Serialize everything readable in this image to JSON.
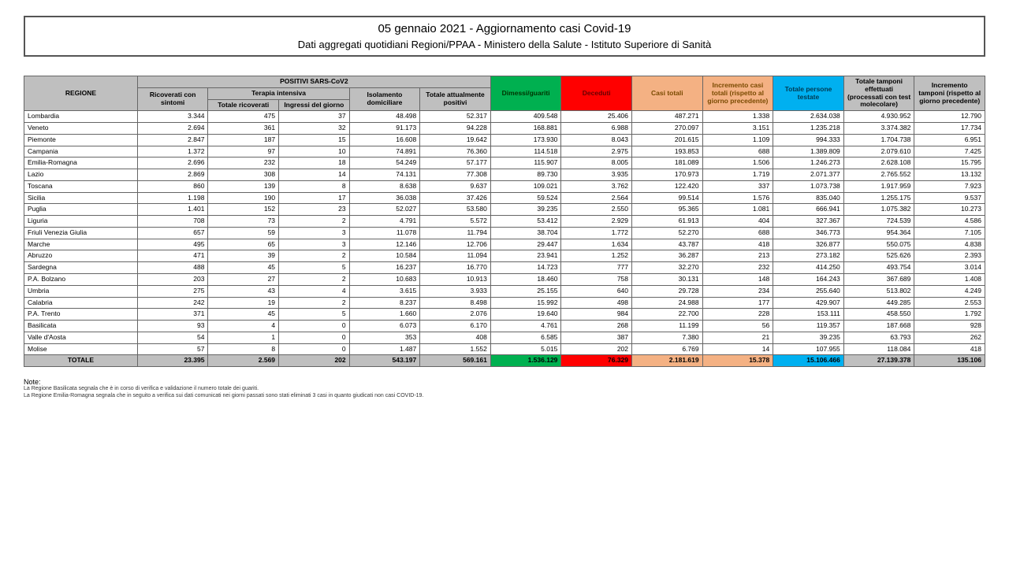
{
  "title": {
    "line1": "05 gennaio 2021 - Aggiornamento casi Covid-19",
    "line2": "Dati aggregati quotidiani Regioni/PPAA - Ministero della Salute - Istituto Superiore di Sanità"
  },
  "headers": {
    "regione": "REGIONE",
    "positivi": "POSITIVI SARS-CoV2",
    "ricoverati": "Ricoverati con sintomi",
    "terapia": "Terapia intensiva",
    "terapia_tot": "Totale ricoverati",
    "terapia_ing": "Ingressi del giorno",
    "isolamento": "Isolamento domiciliare",
    "tot_pos": "Totale attualmente positivi",
    "guariti": "Dimessi/guariti",
    "deceduti": "Deceduti",
    "casi_tot": "Casi totali",
    "incr_casi": "Incremento casi totali (rispetto al giorno precedente)",
    "persone": "Totale persone testate",
    "tamponi": "Totale tamponi effettuati (processati con test molecolare)",
    "incr_tamp": "Incremento tamponi (rispetto al giorno precedente)"
  },
  "rows": [
    {
      "r": "Lombardia",
      "v": [
        "3.344",
        "475",
        "37",
        "48.498",
        "52.317",
        "409.548",
        "25.406",
        "487.271",
        "1.338",
        "2.634.038",
        "4.930.952",
        "12.790"
      ]
    },
    {
      "r": "Veneto",
      "v": [
        "2.694",
        "361",
        "32",
        "91.173",
        "94.228",
        "168.881",
        "6.988",
        "270.097",
        "3.151",
        "1.235.218",
        "3.374.382",
        "17.734"
      ]
    },
    {
      "r": "Piemonte",
      "v": [
        "2.847",
        "187",
        "15",
        "16.608",
        "19.642",
        "173.930",
        "8.043",
        "201.615",
        "1.109",
        "994.333",
        "1.704.738",
        "6.951"
      ]
    },
    {
      "r": "Campania",
      "v": [
        "1.372",
        "97",
        "10",
        "74.891",
        "76.360",
        "114.518",
        "2.975",
        "193.853",
        "688",
        "1.389.809",
        "2.079.610",
        "7.425"
      ]
    },
    {
      "r": "Emilia-Romagna",
      "v": [
        "2.696",
        "232",
        "18",
        "54.249",
        "57.177",
        "115.907",
        "8.005",
        "181.089",
        "1.506",
        "1.246.273",
        "2.628.108",
        "15.795"
      ]
    },
    {
      "r": "Lazio",
      "v": [
        "2.869",
        "308",
        "14",
        "74.131",
        "77.308",
        "89.730",
        "3.935",
        "170.973",
        "1.719",
        "2.071.377",
        "2.765.552",
        "13.132"
      ]
    },
    {
      "r": "Toscana",
      "v": [
        "860",
        "139",
        "8",
        "8.638",
        "9.637",
        "109.021",
        "3.762",
        "122.420",
        "337",
        "1.073.738",
        "1.917.959",
        "7.923"
      ]
    },
    {
      "r": "Sicilia",
      "v": [
        "1.198",
        "190",
        "17",
        "36.038",
        "37.426",
        "59.524",
        "2.564",
        "99.514",
        "1.576",
        "835.040",
        "1.255.175",
        "9.537"
      ]
    },
    {
      "r": "Puglia",
      "v": [
        "1.401",
        "152",
        "23",
        "52.027",
        "53.580",
        "39.235",
        "2.550",
        "95.365",
        "1.081",
        "666.941",
        "1.075.382",
        "10.273"
      ]
    },
    {
      "r": "Liguria",
      "v": [
        "708",
        "73",
        "2",
        "4.791",
        "5.572",
        "53.412",
        "2.929",
        "61.913",
        "404",
        "327.367",
        "724.539",
        "4.586"
      ]
    },
    {
      "r": "Friuli Venezia Giulia",
      "v": [
        "657",
        "59",
        "3",
        "11.078",
        "11.794",
        "38.704",
        "1.772",
        "52.270",
        "688",
        "346.773",
        "954.364",
        "7.105"
      ]
    },
    {
      "r": "Marche",
      "v": [
        "495",
        "65",
        "3",
        "12.146",
        "12.706",
        "29.447",
        "1.634",
        "43.787",
        "418",
        "326.877",
        "550.075",
        "4.838"
      ]
    },
    {
      "r": "Abruzzo",
      "v": [
        "471",
        "39",
        "2",
        "10.584",
        "11.094",
        "23.941",
        "1.252",
        "36.287",
        "213",
        "273.182",
        "525.626",
        "2.393"
      ]
    },
    {
      "r": "Sardegna",
      "v": [
        "488",
        "45",
        "5",
        "16.237",
        "16.770",
        "14.723",
        "777",
        "32.270",
        "232",
        "414.250",
        "493.754",
        "3.014"
      ]
    },
    {
      "r": "P.A. Bolzano",
      "v": [
        "203",
        "27",
        "2",
        "10.683",
        "10.913",
        "18.460",
        "758",
        "30.131",
        "148",
        "164.243",
        "367.689",
        "1.408"
      ]
    },
    {
      "r": "Umbria",
      "v": [
        "275",
        "43",
        "4",
        "3.615",
        "3.933",
        "25.155",
        "640",
        "29.728",
        "234",
        "255.640",
        "513.802",
        "4.249"
      ]
    },
    {
      "r": "Calabria",
      "v": [
        "242",
        "19",
        "2",
        "8.237",
        "8.498",
        "15.992",
        "498",
        "24.988",
        "177",
        "429.907",
        "449.285",
        "2.553"
      ]
    },
    {
      "r": "P.A. Trento",
      "v": [
        "371",
        "45",
        "5",
        "1.660",
        "2.076",
        "19.640",
        "984",
        "22.700",
        "228",
        "153.111",
        "458.550",
        "1.792"
      ]
    },
    {
      "r": "Basilicata",
      "v": [
        "93",
        "4",
        "0",
        "6.073",
        "6.170",
        "4.761",
        "268",
        "11.199",
        "56",
        "119.357",
        "187.668",
        "928"
      ]
    },
    {
      "r": "Valle d'Aosta",
      "v": [
        "54",
        "1",
        "0",
        "353",
        "408",
        "6.585",
        "387",
        "7.380",
        "21",
        "39.235",
        "63.793",
        "262"
      ]
    },
    {
      "r": "Molise",
      "v": [
        "57",
        "8",
        "0",
        "1.487",
        "1.552",
        "5.015",
        "202",
        "6.769",
        "14",
        "107.955",
        "118.084",
        "418"
      ]
    }
  ],
  "total": {
    "r": "TOTALE",
    "v": [
      "23.395",
      "2.569",
      "202",
      "543.197",
      "569.161",
      "1.536.129",
      "76.329",
      "2.181.619",
      "15.378",
      "15.106.466",
      "27.139.378",
      "135.106"
    ]
  },
  "notes": {
    "label": "Note:",
    "n1": "La Regione Basilicata segnala che è in corso di verifica e validazione il numero totale dei guariti.",
    "n2": "La Regione Emilia-Romagna segnala che in seguito a verifica sui dati comunicati nei giorni passati sono stati eliminati 3 casi in quanto giudicati non casi COVID-19."
  },
  "styling": {
    "colors": {
      "grey": "#bfbfbf",
      "green": "#00b050",
      "red": "#ff0000",
      "orange": "#f4b183",
      "blue": "#00b0f0",
      "border": "#666666",
      "background": "#ffffff"
    },
    "font_family": "Arial",
    "header_font_size_pt": 8.5,
    "title_font_size_pt": 15,
    "subtitle_font_size_pt": 13
  }
}
